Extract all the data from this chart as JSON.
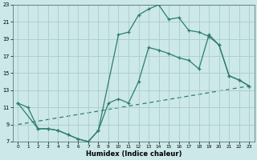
{
  "xlabel": "Humidex (Indice chaleur)",
  "xlim": [
    -0.5,
    23.5
  ],
  "ylim": [
    7,
    23
  ],
  "xticks": [
    0,
    1,
    2,
    3,
    4,
    5,
    6,
    7,
    8,
    9,
    10,
    11,
    12,
    13,
    14,
    15,
    16,
    17,
    18,
    19,
    20,
    21,
    22,
    23
  ],
  "yticks": [
    7,
    9,
    11,
    13,
    15,
    17,
    19,
    21,
    23
  ],
  "bg_color": "#cce8e8",
  "grid_color": "#aacccc",
  "line_color": "#2d7d6e",
  "line1": {
    "x": [
      0,
      1,
      2,
      3,
      4,
      5,
      6,
      7,
      8,
      9,
      10,
      11,
      12,
      13,
      14,
      15,
      16,
      17,
      18,
      19,
      20,
      21,
      22,
      23
    ],
    "y": [
      11.5,
      11.0,
      8.5,
      8.5,
      8.3,
      7.8,
      7.3,
      7.0,
      8.3,
      11.5,
      12.0,
      11.5,
      14.0,
      18.0,
      17.7,
      17.3,
      16.8,
      16.5,
      15.5,
      19.5,
      18.3,
      14.7,
      14.2,
      13.5
    ]
  },
  "line2": {
    "x": [
      0,
      2,
      3,
      4,
      5,
      6,
      7,
      8,
      10,
      11,
      12,
      13,
      14,
      15,
      16,
      17,
      18,
      19,
      20,
      21,
      22,
      23
    ],
    "y": [
      11.5,
      8.5,
      8.5,
      8.3,
      7.8,
      7.3,
      7.0,
      8.3,
      19.5,
      19.8,
      21.8,
      22.5,
      23.0,
      21.3,
      21.5,
      20.0,
      19.8,
      19.3,
      18.3,
      14.7,
      14.2,
      13.5
    ]
  },
  "line3": {
    "x": [
      0,
      23
    ],
    "y": [
      9.0,
      13.5
    ]
  }
}
